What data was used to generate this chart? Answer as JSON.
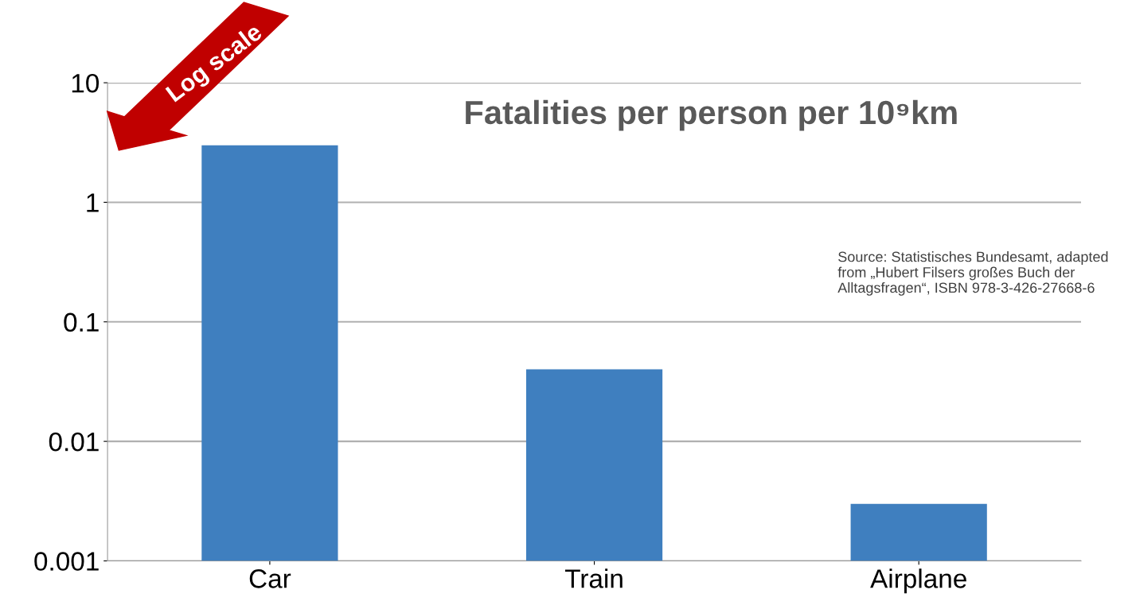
{
  "chart_data": {
    "type": "bar",
    "title": "Fatalities per person per 10⁹km",
    "categories": [
      "Car",
      "Train",
      "Airplane"
    ],
    "values": [
      3,
      0.04,
      0.003
    ],
    "color": "#3f7fbf",
    "log": true,
    "ylim": [
      0.001,
      10
    ],
    "yticks": [
      {
        "value": 0.001,
        "label": "0.001"
      },
      {
        "value": 0.01,
        "label": "0.01"
      },
      {
        "value": 0.1,
        "label": "0.1"
      },
      {
        "value": 1,
        "label": "1"
      },
      {
        "value": 10,
        "label": "10"
      }
    ],
    "grid": "y",
    "annotations": [
      "Log scale",
      "Source: Statistisches Bundesamt, adapted from „Hubert Filsers großes Buch der Alltagsfragen“, ISBN 978-3-426-27668-6"
    ]
  }
}
